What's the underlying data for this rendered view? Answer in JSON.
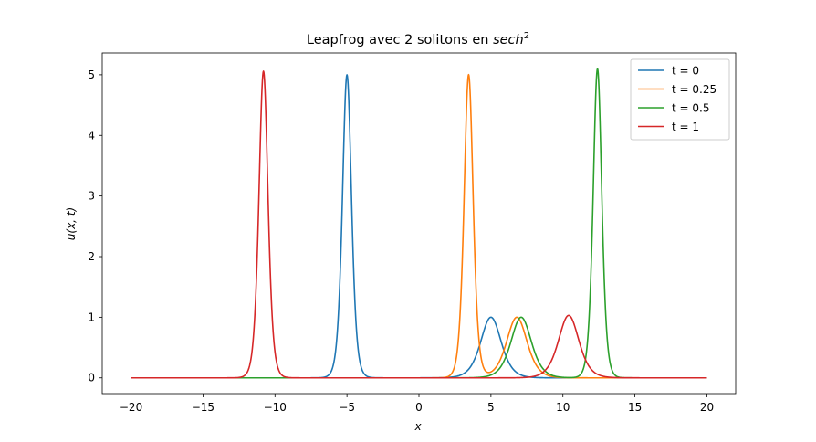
{
  "chart_data": {
    "type": "line",
    "title": "Leapfrog avec 2 solitons en ",
    "title_math": "sech",
    "title_sup": "2",
    "xlabel": "x",
    "ylabel": "u(x, t)",
    "xlim": [
      -22,
      22
    ],
    "ylim": [
      -0.26,
      5.36
    ],
    "xticks": [
      -20,
      -15,
      -10,
      -5,
      0,
      5,
      10,
      15,
      20
    ],
    "xtick_labels": [
      "−20",
      "−15",
      "−10",
      "−5",
      "0",
      "5",
      "10",
      "15",
      "20"
    ],
    "yticks": [
      0,
      1,
      2,
      3,
      4,
      5
    ],
    "ytick_labels": [
      "0",
      "1",
      "2",
      "3",
      "4",
      "5"
    ],
    "x_range": [
      -20,
      20
    ],
    "legend_position": "upper right",
    "series": [
      {
        "name": "t = 0",
        "color": "#1f77b4",
        "solitons": [
          {
            "center": -5.0,
            "amplitude": 5.0,
            "width": 0.42
          },
          {
            "center": 5.0,
            "amplitude": 1.0,
            "width": 0.95
          }
        ]
      },
      {
        "name": "t = 0.25",
        "color": "#ff7f0e",
        "solitons": [
          {
            "center": 3.45,
            "amplitude": 5.0,
            "width": 0.42
          },
          {
            "center": 6.8,
            "amplitude": 1.0,
            "width": 0.95
          }
        ]
      },
      {
        "name": "t = 0.5",
        "color": "#2ca02c",
        "solitons": [
          {
            "center": 12.4,
            "amplitude": 5.1,
            "width": 0.4
          },
          {
            "center": 7.1,
            "amplitude": 1.0,
            "width": 0.95
          }
        ]
      },
      {
        "name": "t = 1",
        "color": "#d62728",
        "solitons": [
          {
            "center": -10.8,
            "amplitude": 5.06,
            "width": 0.42
          },
          {
            "center": 10.4,
            "amplitude": 1.03,
            "width": 0.95
          }
        ]
      }
    ],
    "grid": false
  }
}
